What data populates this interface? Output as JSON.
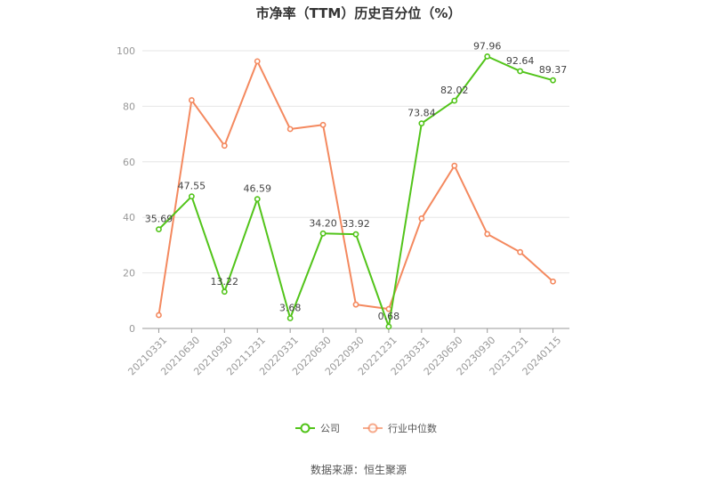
{
  "chart_data": {
    "type": "line",
    "title": "市净率（TTM）历史百分位（%）",
    "categories": [
      "20210331",
      "20210630",
      "20210930",
      "20211231",
      "20220331",
      "20220630",
      "20220930",
      "20221231",
      "20230331",
      "20230630",
      "20230930",
      "20231231",
      "20240115"
    ],
    "ylim": [
      0,
      100
    ],
    "yticks": [
      0,
      20,
      40,
      60,
      80,
      100
    ],
    "grid": true,
    "legend_position": "bottom",
    "series": [
      {
        "name": "公司",
        "color": "#52c41a",
        "labels_shown": true,
        "values": [
          35.69,
          47.55,
          13.22,
          46.59,
          3.68,
          34.2,
          33.92,
          0.68,
          73.84,
          82.02,
          97.96,
          92.64,
          89.37
        ],
        "value_labels": [
          "35.69",
          "47.55",
          "13.22",
          "46.59",
          "3.68",
          "34.20",
          "33.92",
          "0.68",
          "73.84",
          "82.02",
          "97.96",
          "92.64",
          "89.37"
        ]
      },
      {
        "name": "行业中位数",
        "color": "#f4895f",
        "labels_shown": false,
        "values": [
          4.8,
          82.2,
          65.8,
          96.2,
          71.8,
          73.3,
          8.6,
          7.0,
          39.6,
          58.6,
          34.0,
          27.5,
          16.9
        ]
      }
    ]
  },
  "source_text": "数据来源：恒生聚源"
}
